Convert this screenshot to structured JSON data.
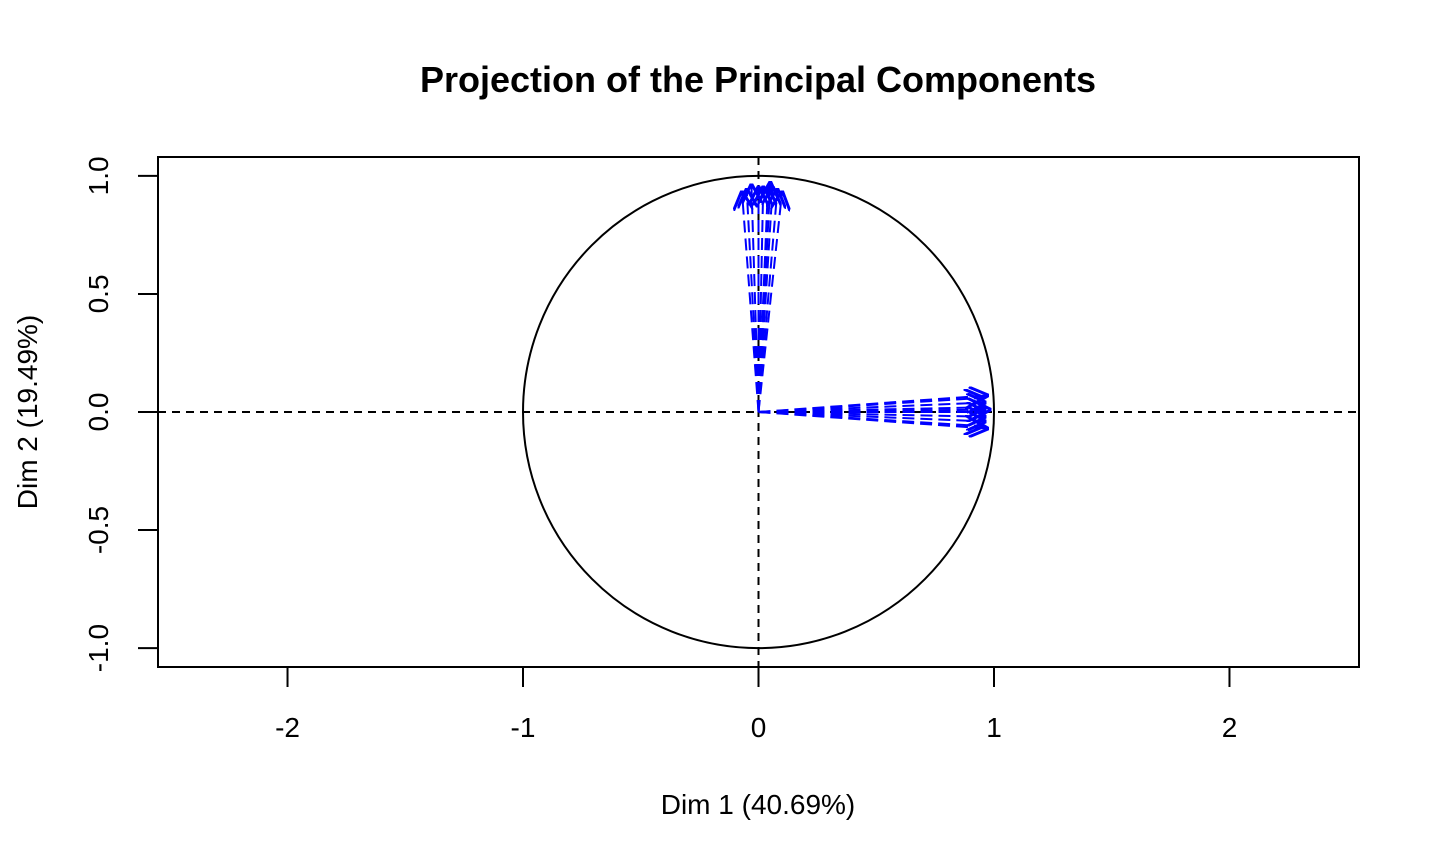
{
  "chart_data": {
    "type": "scatter",
    "title": "Projection of the Principal Components",
    "xlabel": "Dim 1 (40.69%)",
    "ylabel": "Dim 2 (19.49%)",
    "xlim": [
      -2.55,
      2.55
    ],
    "ylim": [
      -1.08,
      1.08
    ],
    "x_ticks": [
      -2,
      -1,
      0,
      1,
      2
    ],
    "x_tick_labels": [
      "-2",
      "-1",
      "0",
      "1",
      "2"
    ],
    "y_ticks": [
      -1.0,
      -0.5,
      0.0,
      0.5,
      1.0
    ],
    "y_tick_labels": [
      "-1.0",
      "-0.5",
      "0.0",
      "0.5",
      "1.0"
    ],
    "grid": false,
    "reference_lines": {
      "x": 0,
      "y": 0,
      "style": "dashed"
    },
    "unit_circle": {
      "center": [
        0,
        0
      ],
      "radius": 1
    },
    "series_color": "#0000ff",
    "series": [
      {
        "vectors": [
          [
            0.0,
            0.95
          ],
          [
            0.02,
            0.95
          ],
          [
            0.04,
            0.95
          ],
          [
            0.06,
            0.95
          ],
          [
            0.08,
            0.94
          ],
          [
            0.1,
            0.93
          ],
          [
            -0.05,
            0.94
          ],
          [
            -0.03,
            0.96
          ],
          [
            0.05,
            0.97
          ],
          [
            -0.07,
            0.93
          ]
        ]
      },
      {
        "vectors": [
          [
            0.96,
            0.0
          ],
          [
            0.96,
            0.02
          ],
          [
            0.96,
            0.04
          ],
          [
            0.96,
            -0.02
          ],
          [
            0.96,
            -0.04
          ],
          [
            0.95,
            0.06
          ],
          [
            0.95,
            -0.06
          ],
          [
            0.98,
            0.01
          ],
          [
            0.97,
            0.07
          ],
          [
            0.97,
            -0.07
          ]
        ]
      }
    ]
  }
}
